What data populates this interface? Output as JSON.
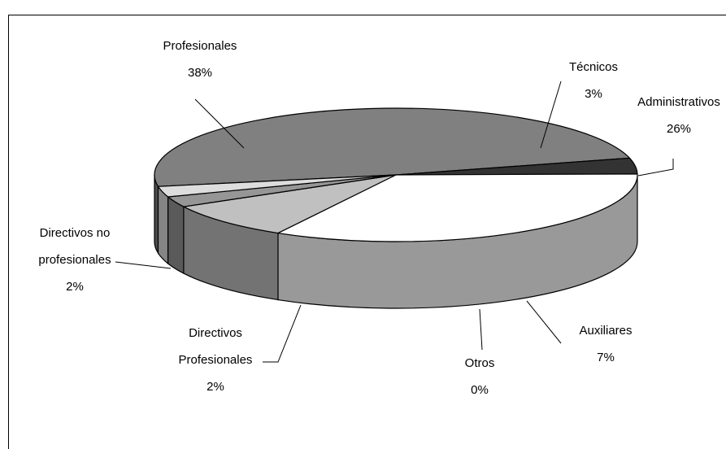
{
  "chart_data": {
    "type": "pie",
    "categories": [
      "Profesionales",
      "Técnicos",
      "Administrativos",
      "Auxiliares",
      "Otros",
      "Directivos Profesionales",
      "Directivos no profesionales"
    ],
    "values": [
      38,
      3,
      26,
      7,
      0,
      2,
      2
    ],
    "value_labels": [
      "38%",
      "3%",
      "26%",
      "7%",
      "0%",
      "2%",
      "2%"
    ],
    "colors": [
      "#808080",
      "#333333",
      "#ffffff",
      "#c0c0c0",
      "#a0a0a0",
      "#969696",
      "#dddddd"
    ]
  }
}
